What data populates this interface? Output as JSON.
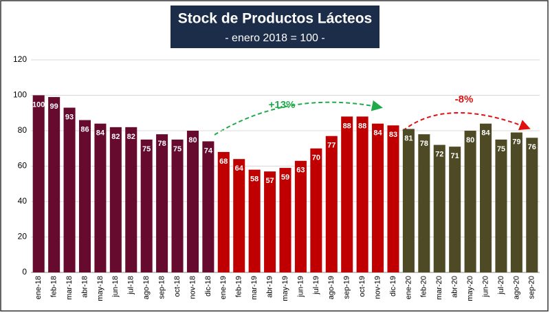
{
  "chart_data": {
    "type": "bar",
    "title": "Stock de Productos Lácteos",
    "subtitle": "- enero 2018 = 100 -",
    "categories": [
      "ene-18",
      "feb-18",
      "mar-18",
      "abr-18",
      "may-18",
      "jun-18",
      "jul-18",
      "ago-18",
      "sep-18",
      "oct-18",
      "nov-18",
      "dic-18",
      "ene-19",
      "feb-19",
      "mar-19",
      "abr-19",
      "may-19",
      "jun-19",
      "jul-19",
      "ago-19",
      "sep-19",
      "oct-19",
      "nov-19",
      "dic-19",
      "ene-20",
      "feb-20",
      "mar-20",
      "abr-20",
      "may-20",
      "jun-20",
      "jul-20",
      "ago-20",
      "sep-20"
    ],
    "values": [
      100,
      99,
      93,
      86,
      84,
      82,
      82,
      75,
      78,
      75,
      80,
      74,
      68,
      64,
      58,
      57,
      59,
      63,
      70,
      77,
      88,
      88,
      84,
      83,
      81,
      78,
      72,
      71,
      80,
      84,
      75,
      79,
      76
    ],
    "colors": [
      "#660a2e",
      "#660a2e",
      "#660a2e",
      "#660a2e",
      "#660a2e",
      "#660a2e",
      "#660a2e",
      "#660a2e",
      "#660a2e",
      "#660a2e",
      "#660a2e",
      "#660a2e",
      "#c00000",
      "#c00000",
      "#c00000",
      "#c00000",
      "#c00000",
      "#c00000",
      "#c00000",
      "#c00000",
      "#c00000",
      "#c00000",
      "#c00000",
      "#c00000",
      "#4e4a25",
      "#4e4a25",
      "#4e4a25",
      "#4e4a25",
      "#4e4a25",
      "#4e4a25",
      "#4e4a25",
      "#4e4a25",
      "#4e4a25"
    ],
    "ylim": [
      0,
      120
    ],
    "yticks": [
      0,
      20,
      40,
      60,
      80,
      100,
      120
    ],
    "grid": true,
    "annotations": [
      {
        "text": "+13%",
        "color": "#1faa4a"
      },
      {
        "text": "-8%",
        "color": "#e01010"
      }
    ]
  }
}
